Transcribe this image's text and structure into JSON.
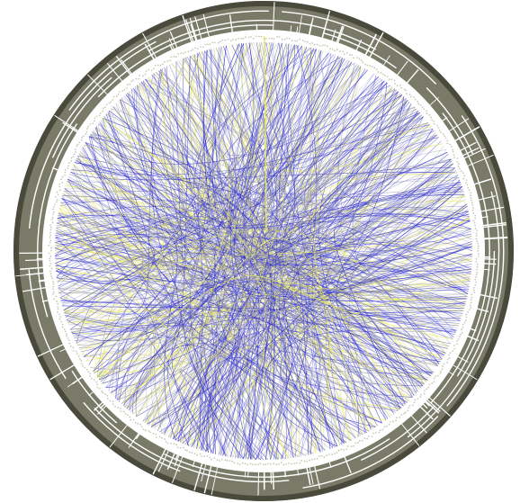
{
  "diagram": {
    "type": "hierarchical-edge-bundling",
    "hierarchy_levels": 5,
    "colors": {
      "ring_fill": "#7a7a68",
      "ring_dark": "#4a4a3c",
      "ring_separator": "#ffffff",
      "edge_primary": "#2a2ad0",
      "edge_secondary": "#e8e860",
      "edge_neutral": "#9a9aa8",
      "leaf_dots": "#c8c8b8",
      "background": "#ffffff"
    }
  }
}
